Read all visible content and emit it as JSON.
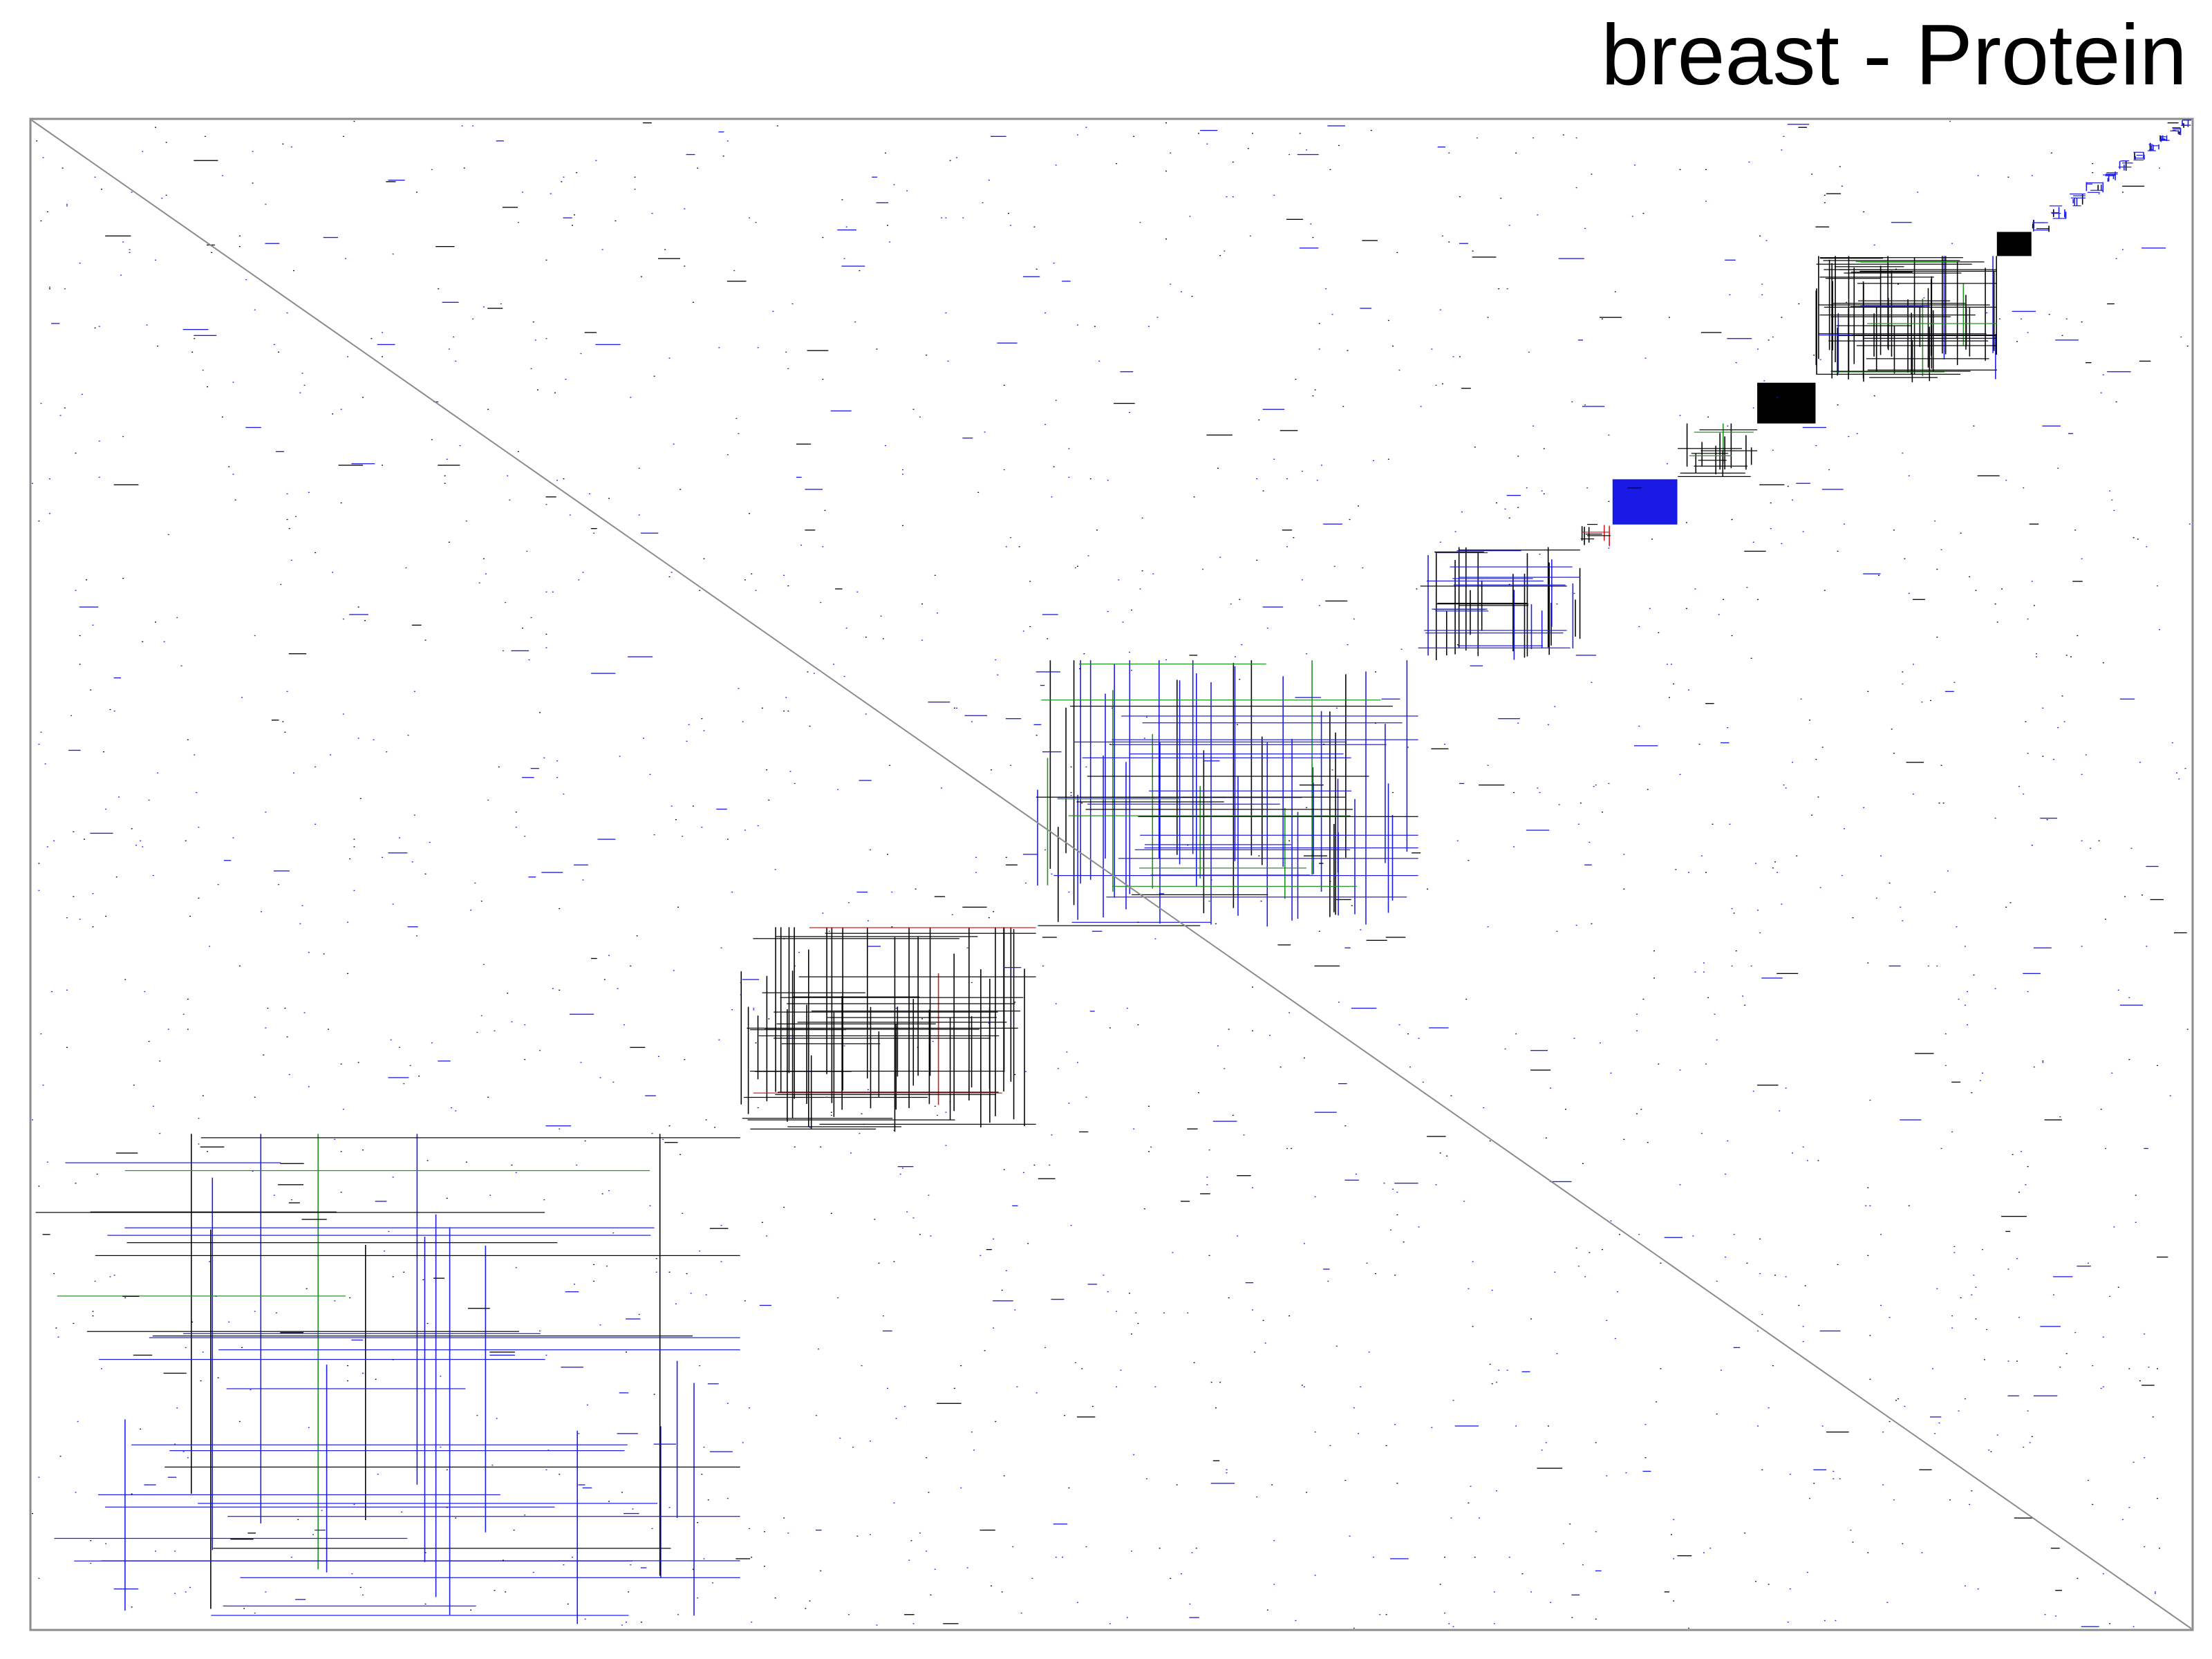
{
  "chart_data": {
    "type": "heatmap",
    "title": "breast - Protein",
    "xlabel": "",
    "ylabel": "",
    "grid": false,
    "legend": "none",
    "matrix_size": 1000,
    "colors": {
      "black": "#000000",
      "blue": "#1a1ae6",
      "green": "#1f8f1f",
      "red": "#d01818",
      "frame": "#8c8c8c",
      "background": "#ffffff"
    },
    "diagonal_blocks": [
      {
        "start": 0,
        "end": 328,
        "color_mix": {
          "black": 0.35,
          "blue": 0.55,
          "green": 0.1
        },
        "density": 0.09
      },
      {
        "start": 328,
        "end": 465,
        "color_mix": {
          "black": 0.95,
          "red": 0.05
        },
        "density": 0.35
      },
      {
        "start": 465,
        "end": 642,
        "color_mix": {
          "black": 0.3,
          "blue": 0.62,
          "green": 0.08
        },
        "density": 0.3
      },
      {
        "start": 642,
        "end": 717,
        "color_mix": {
          "black": 0.55,
          "blue": 0.45
        },
        "density": 0.3
      },
      {
        "start": 717,
        "end": 732,
        "color_mix": {
          "black": 0.6,
          "red": 0.4
        },
        "density": 0.35
      },
      {
        "start": 732,
        "end": 762,
        "color_mix": {
          "blue": 0.94,
          "red": 0.06
        },
        "density": 0.95
      },
      {
        "start": 762,
        "end": 799,
        "color_mix": {
          "black": 0.8,
          "green": 0.2
        },
        "density": 0.35
      },
      {
        "start": 799,
        "end": 826,
        "color_mix": {
          "black": 1.0
        },
        "density": 0.97
      },
      {
        "start": 826,
        "end": 910,
        "color_mix": {
          "black": 0.8,
          "blue": 0.12,
          "green": 0.08
        },
        "density": 0.65
      },
      {
        "start": 910,
        "end": 926,
        "color_mix": {
          "black": 1.0
        },
        "density": 0.97
      },
      {
        "start": 926,
        "end": 934,
        "color_mix": {
          "black": 0.5,
          "blue": 0.5
        },
        "density": 0.8
      },
      {
        "start": 934,
        "end": 943,
        "color_mix": {
          "blue": 0.9,
          "black": 0.1
        },
        "density": 0.8
      },
      {
        "start": 943,
        "end": 951,
        "color_mix": {
          "blue": 0.9,
          "black": 0.1
        },
        "density": 0.8
      },
      {
        "start": 951,
        "end": 959,
        "color_mix": {
          "blue": 0.9,
          "black": 0.1
        },
        "density": 0.8
      },
      {
        "start": 959,
        "end": 966,
        "color_mix": {
          "blue": 0.9,
          "black": 0.1
        },
        "density": 0.8
      },
      {
        "start": 966,
        "end": 973,
        "color_mix": {
          "blue": 0.9,
          "black": 0.1
        },
        "density": 0.8
      },
      {
        "start": 973,
        "end": 979,
        "color_mix": {
          "blue": 0.9,
          "black": 0.1
        },
        "density": 0.8
      },
      {
        "start": 979,
        "end": 985,
        "color_mix": {
          "blue": 0.9,
          "black": 0.1
        },
        "density": 0.8
      },
      {
        "start": 985,
        "end": 990,
        "color_mix": {
          "blue": 0.9,
          "black": 0.1
        },
        "density": 0.8
      },
      {
        "start": 990,
        "end": 995,
        "color_mix": {
          "blue": 0.9,
          "black": 0.1
        },
        "density": 0.8
      },
      {
        "start": 995,
        "end": 1000,
        "color_mix": {
          "blue": 0.9,
          "black": 0.1
        },
        "density": 0.8
      }
    ],
    "off_diagonal_density": 0.004,
    "diagonal_line": true
  }
}
